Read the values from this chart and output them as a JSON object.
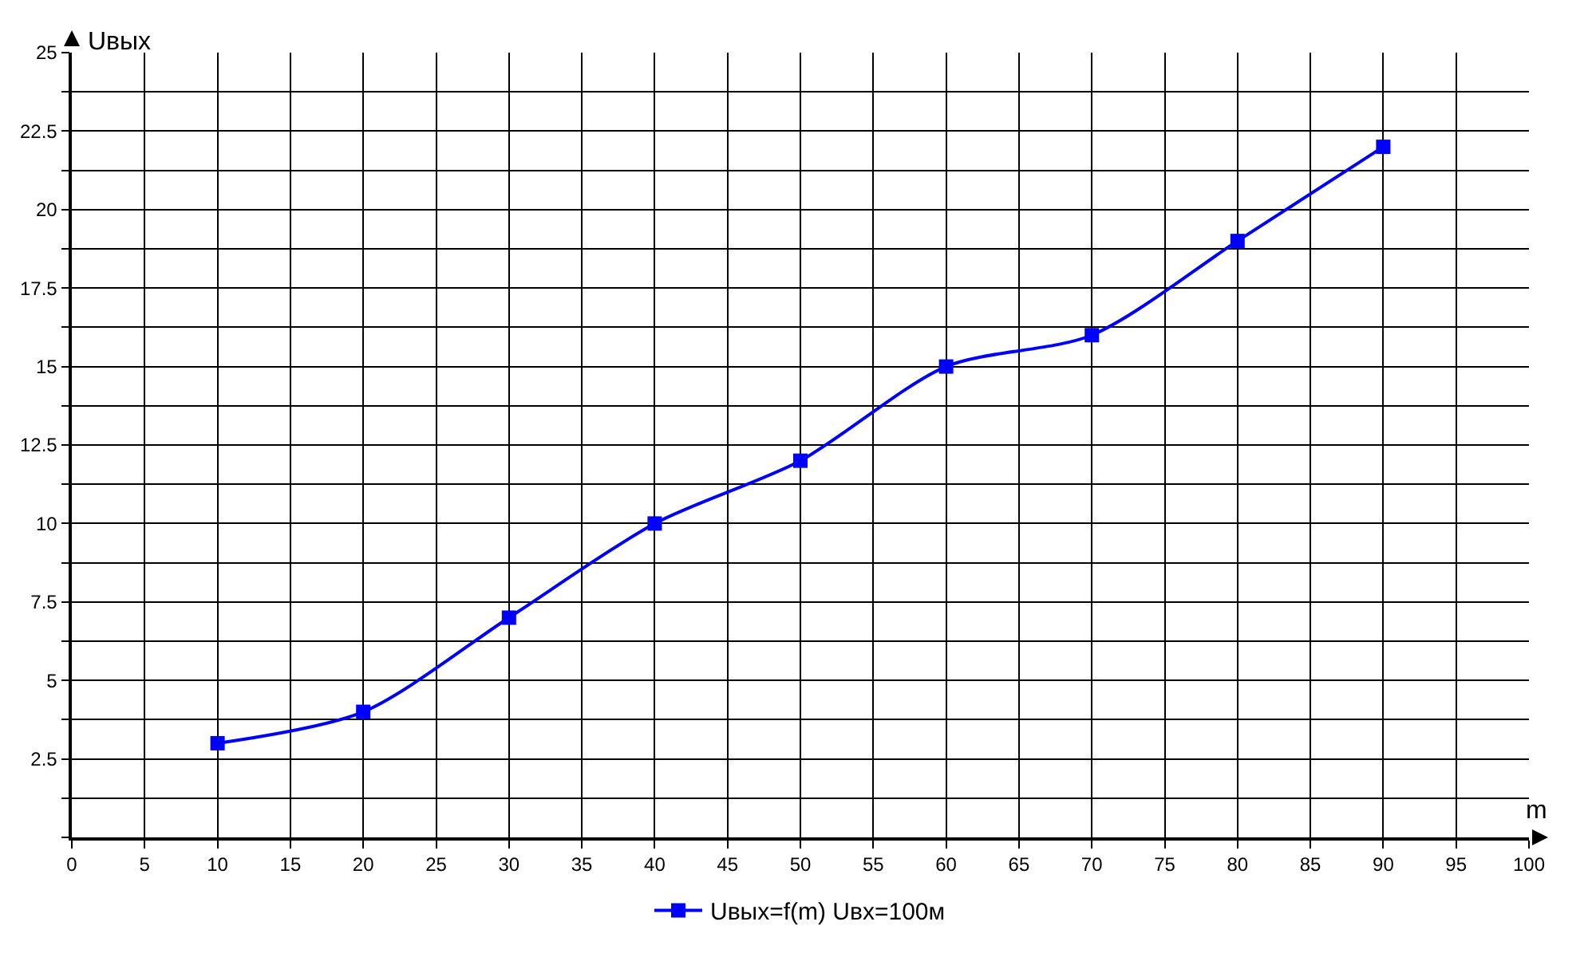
{
  "chart_data": {
    "type": "line",
    "xlabel": "m",
    "ylabel": "Uвых",
    "x": [
      10,
      20,
      30,
      40,
      50,
      60,
      70,
      80,
      90
    ],
    "series": [
      {
        "name": "Uвых=f(m) Uвх=100м",
        "color": "#0000ff",
        "values": [
          3,
          4,
          7,
          10,
          12,
          15,
          16,
          19,
          22
        ]
      }
    ],
    "xlim": [
      0,
      100
    ],
    "xticks": [
      0,
      5,
      10,
      15,
      20,
      25,
      30,
      35,
      40,
      45,
      50,
      55,
      60,
      65,
      70,
      75,
      80,
      85,
      90,
      95,
      100
    ],
    "ylim": [
      0,
      25
    ],
    "yticks": [
      {
        "value": 0,
        "label": null
      },
      {
        "value": 1.25,
        "label": null
      },
      2.5,
      {
        "value": 3.75,
        "label": null
      },
      5,
      {
        "value": 6.25,
        "label": null
      },
      7.5,
      {
        "value": 8.75,
        "label": null
      },
      10,
      {
        "value": 11.25,
        "label": null
      },
      12.5,
      {
        "value": 13.75,
        "label": null
      },
      15,
      {
        "value": 16.25,
        "label": null
      },
      17.5,
      {
        "value": 18.75,
        "label": null
      },
      20,
      {
        "value": 21.25,
        "label": null
      },
      22.5,
      {
        "value": 23.75,
        "label": null
      },
      25
    ],
    "grid": true,
    "legend": "bottom",
    "marker": "square",
    "line_style": "solid"
  }
}
